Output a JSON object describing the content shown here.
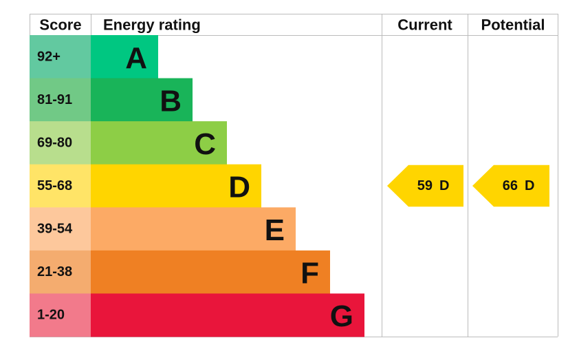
{
  "header": {
    "score": "Score",
    "energy_rating": "Energy rating",
    "current": "Current",
    "potential": "Potential"
  },
  "bands": [
    {
      "score": "92+",
      "rating": "A",
      "color": "#00c781",
      "score_color": "#62c9a0"
    },
    {
      "score": "81-91",
      "rating": "B",
      "color": "#19b459",
      "score_color": "#71c986"
    },
    {
      "score": "69-80",
      "rating": "C",
      "color": "#8dce46",
      "score_color": "#b8de8d"
    },
    {
      "score": "55-68",
      "rating": "D",
      "color": "#ffd500",
      "score_color": "#ffe467"
    },
    {
      "score": "39-54",
      "rating": "E",
      "color": "#fcaa65",
      "score_color": "#fdc89c"
    },
    {
      "score": "21-38",
      "rating": "F",
      "color": "#ef8023",
      "score_color": "#f4ac6f"
    },
    {
      "score": "1-20",
      "rating": "G",
      "color": "#e9153b",
      "score_color": "#f27a8b"
    }
  ],
  "current": {
    "value": 59,
    "rating": "D"
  },
  "potential": {
    "value": 66,
    "rating": "D"
  }
}
